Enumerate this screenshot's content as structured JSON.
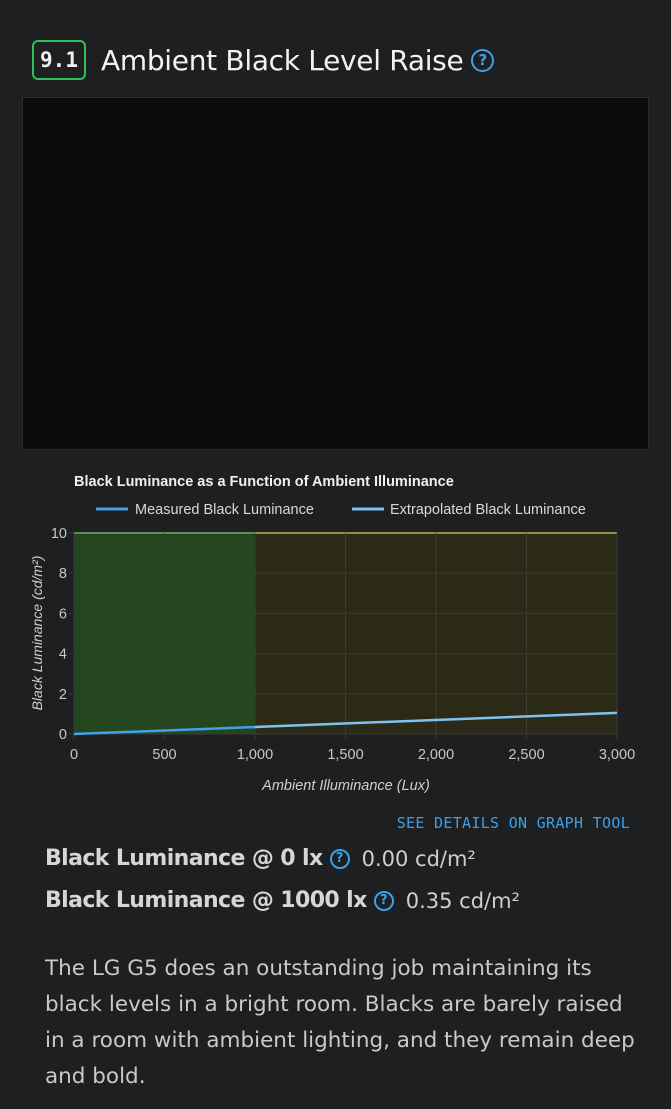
{
  "section": {
    "score": "9.1",
    "title": "Ambient Black Level Raise"
  },
  "chart_data": {
    "type": "line",
    "title": "Black Luminance as a Function of Ambient Illuminance",
    "xlabel": "Ambient Illuminance (Lux)",
    "ylabel": "Black Luminance (cd/m²)",
    "xlim": [
      0,
      3000
    ],
    "ylim": [
      0,
      10
    ],
    "x_ticks": [
      "0",
      "500",
      "1,000",
      "1,500",
      "2,000",
      "2,500",
      "3,000"
    ],
    "y_ticks": [
      "0",
      "2",
      "4",
      "6",
      "8",
      "10"
    ],
    "grid": true,
    "legend_placement": "top",
    "regions": [
      {
        "x": [
          0,
          1000
        ],
        "color": "#23461f"
      },
      {
        "x": [
          1000,
          3000
        ],
        "color": "#2a2a16"
      }
    ],
    "series": [
      {
        "name": "Measured Black Luminance",
        "color": "#3fa2e6",
        "x": [
          0,
          1000
        ],
        "y": [
          0,
          0.35
        ]
      },
      {
        "name": "Extrapolated Black Luminance",
        "color": "#7ec3f0",
        "x": [
          1000,
          3000
        ],
        "y": [
          0.35,
          1.05
        ]
      }
    ],
    "colors": {
      "top_line_green": "#7fe07a",
      "top_line_yellow": "#e8e46a",
      "grid": "#3a3b36",
      "axis_text": "#c8c8c8"
    }
  },
  "link": {
    "graph_tool": "SEE DETAILS ON GRAPH TOOL"
  },
  "metrics": [
    {
      "label": "Black Luminance @ 0 lx",
      "value": "0.00 cd/m²"
    },
    {
      "label": "Black Luminance @ 1000 lx",
      "value": "0.35 cd/m²"
    }
  ],
  "description": "The LG G5 does an outstanding job maintaining its black levels in a bright room. Blacks are barely raised in a room with ambient lighting, and they remain deep and bold.",
  "colors": {
    "accent": "#3aa0ea",
    "badge_border": "#2fbf5b",
    "background": "#1e1f21"
  }
}
